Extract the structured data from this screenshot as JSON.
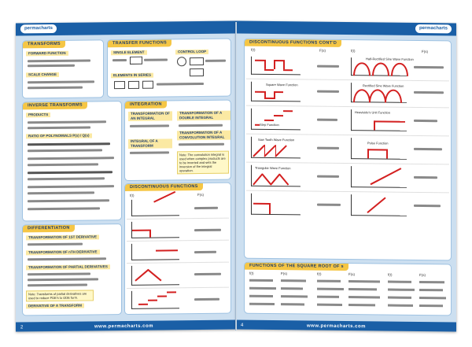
{
  "brand": {
    "left": "permacharts",
    "right": "permacharts"
  },
  "left_page": {
    "panels": {
      "transforms": {
        "title": "TRANSFORMS",
        "subs": [
          "FORWARD FUNCTION",
          "SCALE CHANGE"
        ]
      },
      "transfer_functions": {
        "title": "TRANSFER FUNCTIONS",
        "subs": [
          "SINGLE ELEMENT",
          "CONTROL LOOP",
          "ELEMENTS IN SERIES"
        ]
      },
      "inverse_transforms": {
        "title": "INVERSE TRANSFORMS",
        "subs": [
          "PRODUCTS",
          "RATIO OF POLYNOMIALS P(s) / Q(s)"
        ]
      },
      "integration": {
        "title": "INTEGRATION",
        "subs": [
          "TRANSFORMATION OF AN INTEGRAL",
          "TRANSFORMATION OF A DOUBLE INTEGRAL",
          "TRANSFORMATION OF A CONVOLUTION INTEGRAL",
          "INTEGRAL OF A TRANSFORM"
        ],
        "note": "Note: The convolution integral is used when complex products are to be inverted and sets the inversion of the integral operation."
      },
      "differentiation": {
        "title": "DIFFERENTIATION",
        "subs": [
          "TRANSFORMATION OF 1ST DERIVATIVE",
          "TRANSFORMATION OF nTH DERIVATIVE",
          "TRANSFORMATION OF PARTIAL DERIVATIVES",
          "DERIVATIVE OF A TRANSFORM"
        ],
        "note": "Note: Transforms of partial derivatives are used to reduce PDE's to ODE form."
      },
      "discontinuous": {
        "title": "DISCONTINUOUS FUNCTIONS",
        "col1": "f(t)",
        "col2": "F(s)"
      }
    },
    "footer": {
      "page": "2",
      "url": "www.permacharts.com"
    }
  },
  "right_page": {
    "panels": {
      "discontinuous_contd": {
        "title": "DISCONTINUOUS FUNCTIONS CONT'D",
        "col_headers": [
          "f(t)",
          "F(s)",
          "f(t)",
          "F(s)"
        ],
        "graph_titles": [
          "Square Wave Function",
          "Half-Rectified Sine Wave Function",
          "Rectified Sine Wave Function",
          "Step Function",
          "Heaviside's Unit Function",
          "Saw Tooth Wave Function",
          "Pulse Function",
          "Triangular Wave Function"
        ]
      },
      "square_root": {
        "title": "FUNCTIONS OF THE SQUARE ROOT OF s",
        "col_headers": [
          "f(t)",
          "F(s)",
          "f(t)",
          "F(s)",
          "f(t)",
          "F(s)"
        ]
      }
    },
    "footer": {
      "page": "4",
      "url": "www.permacharts.com"
    }
  }
}
